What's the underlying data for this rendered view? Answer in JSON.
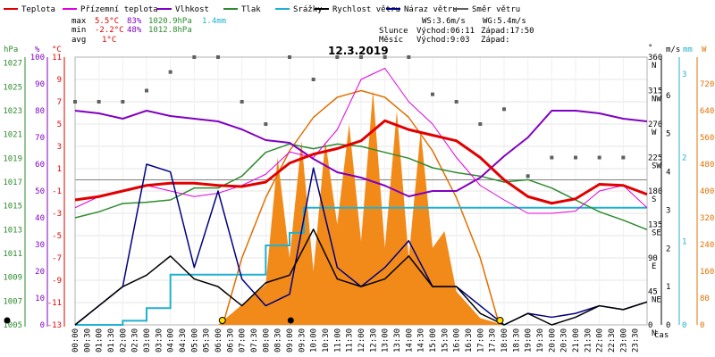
{
  "chart_data": {
    "type": "line",
    "date": "12.3.2019",
    "legend": [
      {
        "name": "Teplota",
        "color": "#e00000"
      },
      {
        "name": "Přízemní teplota",
        "color": "#e000e0"
      },
      {
        "name": "Vlhkost",
        "color": "#8000c0"
      },
      {
        "name": "Tlak",
        "color": "#2e8b2e"
      },
      {
        "name": "Srážky",
        "color": "#20b0d0"
      },
      {
        "name": "Rychlost větru",
        "color": "#000000"
      },
      {
        "name": "Náraz větru",
        "color": "#000080"
      },
      {
        "name": "Směr větru",
        "color": "#606060"
      }
    ],
    "stats": {
      "max": {
        "label": "max",
        "temp": "5.5°C",
        "hum": "83%",
        "press": "1020.9hPa",
        "rain": "1.4mm"
      },
      "min": {
        "label": "min",
        "temp": "-2.2°C",
        "hum": "48%",
        "press": "1012.8hPa"
      },
      "avg": {
        "label": "avg",
        "temp": "1°C"
      }
    },
    "wind_info": {
      "ws": "WS:3.6m/s",
      "wg": "WG:5.4m/s"
    },
    "sun_info": {
      "label": "Slunce",
      "rise": "Východ:06:11",
      "set": "Západ:17:50"
    },
    "moon_info": {
      "label": "Měsíc",
      "rise": "Východ:9:03",
      "set": "Západ:"
    },
    "axes": {
      "hpa": {
        "unit": "hPa",
        "ticks": [
          "1027",
          "1025",
          "1023",
          "1021",
          "1019",
          "1017",
          "1015",
          "1013",
          "1011",
          "1009",
          "1007",
          "1005"
        ]
      },
      "percent": {
        "unit": "%",
        "ticks": [
          "100",
          "90",
          "80",
          "70",
          "60",
          "50",
          "40",
          "30",
          "20",
          "10",
          "0"
        ]
      },
      "celsius": {
        "unit": "°C",
        "ticks": [
          "11",
          "9",
          "7",
          "5",
          "3",
          "1",
          "-1",
          "-3",
          "-5",
          "-7",
          "-9",
          "-11",
          "-13"
        ]
      },
      "direction": {
        "unit": "°",
        "ticks": [
          "360 N",
          "315 NW",
          "270 W",
          "225 SW",
          "180 S",
          "135 SE",
          "90 E",
          "45 NE",
          "0 N"
        ]
      },
      "ms_a": {
        "unit": "m/s",
        "ticks": [
          "6",
          "5",
          "4",
          "3",
          "2",
          "1",
          "0"
        ]
      },
      "mm": {
        "unit": "mm",
        "ticks": [
          "3",
          "2",
          "1",
          "0"
        ]
      },
      "watt": {
        "unit": "W",
        "ticks": [
          "720",
          "640",
          "560",
          "480",
          "400",
          "320",
          "240",
          "160",
          "80",
          "0"
        ]
      },
      "time_label": "čas",
      "time_ticks": [
        "00:00",
        "00:30",
        "01:00",
        "01:30",
        "02:00",
        "02:30",
        "03:00",
        "03:30",
        "04:00",
        "04:30",
        "05:00",
        "05:30",
        "06:00",
        "06:30",
        "07:00",
        "07:30",
        "08:00",
        "08:30",
        "09:00",
        "09:30",
        "10:00",
        "10:30",
        "11:00",
        "11:30",
        "12:00",
        "12:30",
        "13:00",
        "13:30",
        "14:00",
        "14:30",
        "15:00",
        "15:30",
        "16:00",
        "16:30",
        "17:00",
        "17:30",
        "18:00",
        "18:30",
        "19:00",
        "19:30",
        "20:00",
        "20:30",
        "21:00",
        "21:30",
        "22:00",
        "22:30",
        "23:00",
        "23:30"
      ]
    },
    "series": [
      {
        "name": "Teplota",
        "unit": "°C",
        "x": [
          0,
          1,
          2,
          3,
          4,
          5,
          6,
          7,
          8,
          9,
          10,
          11,
          12,
          13,
          14,
          15,
          16,
          17,
          18,
          19,
          20,
          21,
          22,
          23,
          24
        ],
        "values": [
          -1.8,
          -1.5,
          -1.0,
          -0.5,
          -0.3,
          -0.3,
          -0.5,
          -0.6,
          -0.2,
          1.5,
          2.3,
          2.8,
          3.5,
          5.3,
          4.5,
          4.0,
          3.5,
          2.0,
          0.0,
          -1.5,
          -2.1,
          -1.7,
          -0.4,
          -0.5,
          -1.3
        ]
      },
      {
        "name": "Přízemní teplota",
        "unit": "°C",
        "x": [
          0,
          1,
          2,
          3,
          4,
          5,
          6,
          7,
          8,
          9,
          10,
          11,
          12,
          13,
          14,
          15,
          16,
          17,
          18,
          19,
          20,
          21,
          22,
          23,
          24
        ],
        "values": [
          -2.5,
          -1.5,
          -1.0,
          -0.5,
          -1.0,
          -1.5,
          -1.2,
          -0.5,
          0.5,
          2.5,
          2.0,
          4.5,
          9.0,
          10.0,
          7.0,
          5.0,
          2.0,
          -0.5,
          -1.8,
          -3.0,
          -3.0,
          -2.8,
          -1.0,
          -0.5,
          -2.5
        ]
      },
      {
        "name": "Vlhkost",
        "unit": "%",
        "x": [
          0,
          1,
          2,
          3,
          4,
          5,
          6,
          7,
          8,
          9,
          10,
          11,
          12,
          13,
          14,
          15,
          16,
          17,
          18,
          19,
          20,
          21,
          22,
          23,
          24
        ],
        "values": [
          80,
          79,
          77,
          80,
          78,
          77,
          76,
          73,
          69,
          68,
          62,
          57,
          55,
          52,
          48,
          50,
          50,
          55,
          63,
          70,
          80,
          80,
          79,
          77,
          76
        ]
      },
      {
        "name": "Tlak",
        "unit": "hPa",
        "x": [
          0,
          1,
          2,
          3,
          4,
          5,
          6,
          7,
          8,
          9,
          10,
          11,
          12,
          13,
          14,
          15,
          16,
          17,
          18,
          19,
          20,
          21,
          22,
          23,
          24
        ],
        "values": [
          1014.0,
          1014.5,
          1015.2,
          1015.3,
          1015.5,
          1016.5,
          1016.5,
          1017.5,
          1019.5,
          1020.2,
          1019.8,
          1020.2,
          1020.0,
          1019.5,
          1019.0,
          1018.2,
          1017.8,
          1017.5,
          1017.0,
          1017.2,
          1016.5,
          1015.5,
          1014.5,
          1013.8,
          1013.0
        ]
      },
      {
        "name": "Srážky",
        "unit": "mm",
        "x": [
          0,
          1,
          2,
          3,
          4,
          5,
          6,
          7,
          8,
          9,
          9.6,
          10,
          24
        ],
        "values": [
          0.0,
          0.0,
          0.05,
          0.2,
          0.6,
          0.6,
          0.6,
          0.6,
          0.95,
          1.1,
          1.4,
          1.4,
          1.4
        ]
      },
      {
        "name": "Rychlost větru",
        "unit": "m/s",
        "x": [
          0,
          1,
          2,
          3,
          4,
          5,
          6,
          7,
          8,
          9,
          10,
          11,
          12,
          13,
          14,
          15,
          16,
          17,
          18,
          19,
          20,
          21,
          22,
          23,
          24
        ],
        "values": [
          0.0,
          0.5,
          1.0,
          1.3,
          1.8,
          1.2,
          1.0,
          0.5,
          1.1,
          1.3,
          2.5,
          1.2,
          1.0,
          1.2,
          1.8,
          1.0,
          1.0,
          0.3,
          0.0,
          0.3,
          0.0,
          0.2,
          0.5,
          0.4,
          0.6
        ]
      },
      {
        "name": "Náraz větru",
        "unit": "m/s",
        "x": [
          0,
          1,
          2,
          3,
          4,
          5,
          6,
          7,
          8,
          9,
          10,
          11,
          12,
          13,
          14,
          15,
          16,
          17,
          18,
          19,
          20,
          21,
          22,
          23,
          24
        ],
        "values": [
          0.0,
          0.5,
          1.0,
          4.2,
          4.0,
          1.5,
          3.5,
          1.2,
          0.5,
          0.8,
          4.1,
          1.5,
          1.0,
          1.5,
          2.2,
          1.0,
          1.0,
          0.5,
          0.0,
          0.3,
          0.2,
          0.3,
          0.5,
          0.4,
          0.6
        ]
      },
      {
        "name": "Směr větru",
        "unit": "°",
        "x": [
          0,
          1,
          2,
          3,
          4,
          5,
          6,
          7,
          8,
          9,
          10,
          11,
          12,
          13,
          14,
          15,
          16,
          17,
          18,
          19,
          20,
          21,
          22,
          23
        ],
        "values": [
          300,
          300,
          300,
          315,
          340,
          360,
          360,
          300,
          270,
          360,
          330,
          360,
          360,
          360,
          360,
          310,
          300,
          270,
          290,
          200,
          225,
          225,
          225,
          225
        ]
      },
      {
        "name": "Solar",
        "unit": "W",
        "x": [
          6,
          7,
          8,
          8.5,
          9,
          9.5,
          10,
          10.5,
          11,
          11.5,
          12,
          12.5,
          13,
          13.5,
          14,
          14.5,
          15,
          15.5,
          16,
          17,
          18
        ],
        "values": [
          0,
          60,
          120,
          500,
          200,
          550,
          160,
          550,
          300,
          600,
          250,
          700,
          230,
          640,
          200,
          580,
          230,
          280,
          100,
          20,
          0
        ]
      },
      {
        "name": "Teoretické záření",
        "unit": "W",
        "x": [
          6.2,
          7,
          8,
          9,
          10,
          11,
          12,
          13,
          14,
          15,
          16,
          17,
          17.8
        ],
        "values": [
          0,
          200,
          380,
          520,
          620,
          680,
          700,
          680,
          620,
          520,
          380,
          200,
          0
        ]
      }
    ]
  }
}
